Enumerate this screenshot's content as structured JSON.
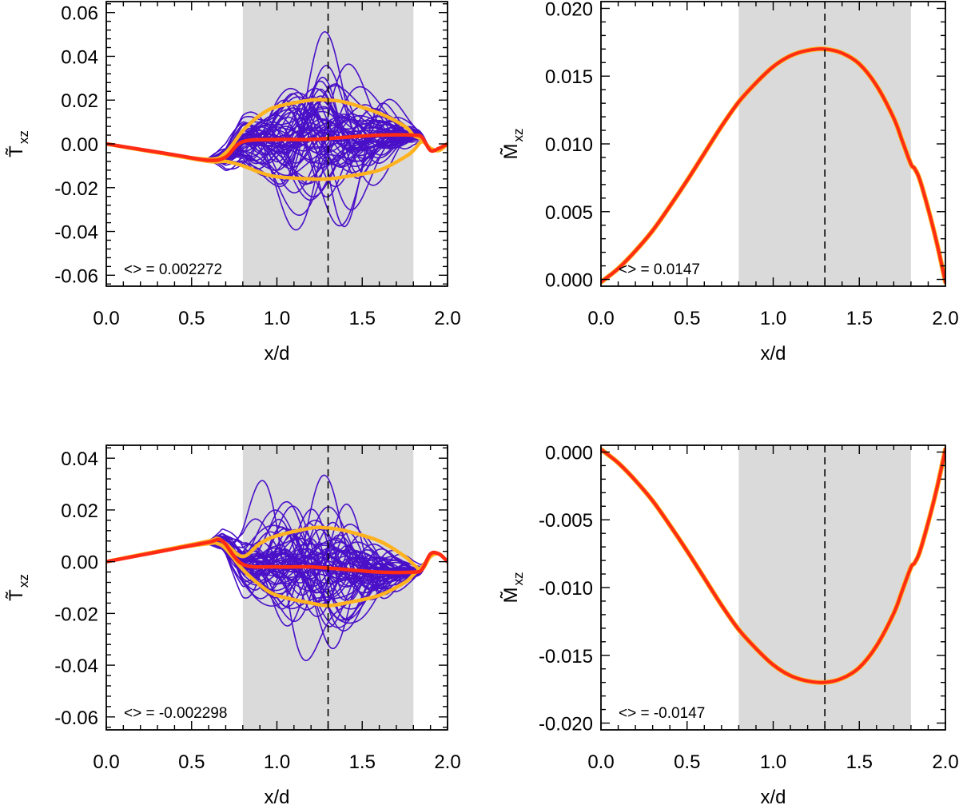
{
  "chart_data": [
    {
      "type": "line",
      "panel": "top-left",
      "xlabel": "x/d",
      "ylabel": "T̃",
      "ylabel_sub": "xz",
      "xlim": [
        0.0,
        2.0
      ],
      "ylim": [
        -0.065,
        0.065
      ],
      "xticks": [
        "0.0",
        "0.5",
        "1.0",
        "1.5",
        "2.0"
      ],
      "xtick_values": [
        0.0,
        0.5,
        1.0,
        1.5,
        2.0
      ],
      "yticks": [
        "0.06",
        "0.04",
        "0.02",
        "0.00",
        "-0.02",
        "-0.04",
        "-0.06"
      ],
      "ytick_values": [
        0.06,
        0.04,
        0.02,
        0.0,
        -0.02,
        -0.04,
        -0.06
      ],
      "shaded_region": [
        0.8,
        1.8
      ],
      "vline": 1.3,
      "annotation": "<> = 0.002272",
      "ensemble": {
        "count": 60,
        "color": "#4a10c8",
        "window": [
          0.8,
          1.8
        ],
        "amplitude": 0.022
      },
      "series": [
        {
          "color": "#ffb21f",
          "role": "upper envelope",
          "x": [
            0.0,
            0.3,
            0.6,
            0.7,
            0.8,
            0.9,
            1.0,
            1.2,
            1.3,
            1.4,
            1.6,
            1.75,
            1.8,
            1.85,
            1.9,
            1.95,
            2.0
          ],
          "y": [
            0.0,
            -0.004,
            -0.007,
            -0.004,
            0.006,
            0.013,
            0.017,
            0.02,
            0.02,
            0.019,
            0.014,
            0.008,
            0.004,
            0.002,
            -0.002,
            -0.003,
            0.0
          ]
        },
        {
          "color": "#ffb21f",
          "role": "lower envelope",
          "x": [
            0.0,
            0.3,
            0.6,
            0.7,
            0.8,
            0.9,
            1.0,
            1.2,
            1.3,
            1.4,
            1.6,
            1.75,
            1.8,
            1.85,
            1.9,
            1.95,
            2.0
          ],
          "y": [
            0.0,
            -0.004,
            -0.008,
            -0.008,
            -0.01,
            -0.013,
            -0.015,
            -0.016,
            -0.016,
            -0.015,
            -0.012,
            -0.006,
            -0.003,
            0.001,
            -0.002,
            -0.003,
            0.0
          ]
        },
        {
          "color": "#ff2b14",
          "role": "mean",
          "x": [
            0.0,
            0.2,
            0.4,
            0.6,
            0.7,
            0.8,
            1.0,
            1.2,
            1.4,
            1.6,
            1.8,
            1.85,
            1.9,
            1.95,
            2.0
          ],
          "y": [
            0.0,
            -0.0025,
            -0.005,
            -0.0075,
            -0.006,
            0.001,
            0.002,
            0.002,
            0.003,
            0.004,
            0.004,
            0.003,
            -0.003,
            -0.002,
            0.0
          ]
        }
      ]
    },
    {
      "type": "line",
      "panel": "top-right",
      "xlabel": "x/d",
      "ylabel": "M̃",
      "ylabel_sub": "xz",
      "xlim": [
        0.0,
        2.0
      ],
      "ylim": [
        -0.0005,
        0.0205
      ],
      "xticks": [
        "0.0",
        "0.5",
        "1.0",
        "1.5",
        "2.0"
      ],
      "xtick_values": [
        0.0,
        0.5,
        1.0,
        1.5,
        2.0
      ],
      "yticks": [
        "0.020",
        "0.015",
        "0.010",
        "0.005",
        "0.000"
      ],
      "ytick_values": [
        0.02,
        0.015,
        0.01,
        0.005,
        0.0
      ],
      "shaded_region": [
        0.8,
        1.8
      ],
      "vline": 1.3,
      "annotation": "<> = 0.0147",
      "series": [
        {
          "color": "#ff2b14",
          "role": "profile",
          "x": [
            0.0,
            0.1,
            0.2,
            0.3,
            0.4,
            0.5,
            0.6,
            0.7,
            0.8,
            0.9,
            1.0,
            1.1,
            1.2,
            1.3,
            1.4,
            1.5,
            1.6,
            1.7,
            1.75,
            1.8,
            1.82,
            1.85,
            1.9,
            1.95,
            2.0
          ],
          "y": [
            -0.0002,
            0.0008,
            0.0021,
            0.0036,
            0.0054,
            0.0073,
            0.0093,
            0.0113,
            0.0131,
            0.0145,
            0.0157,
            0.0165,
            0.0169,
            0.017,
            0.0167,
            0.0159,
            0.0143,
            0.0119,
            0.0102,
            0.0085,
            0.0082,
            0.0074,
            0.0052,
            0.0027,
            -0.0002
          ]
        }
      ]
    },
    {
      "type": "line",
      "panel": "bottom-left",
      "xlabel": "x/d",
      "ylabel": "T̃",
      "ylabel_sub": "xz",
      "xlim": [
        0.0,
        2.0
      ],
      "ylim": [
        -0.065,
        0.045
      ],
      "xticks": [
        "0.0",
        "0.5",
        "1.0",
        "1.5",
        "2.0"
      ],
      "xtick_values": [
        0.0,
        0.5,
        1.0,
        1.5,
        2.0
      ],
      "yticks": [
        "0.04",
        "0.02",
        "0.00",
        "-0.02",
        "-0.04",
        "-0.06"
      ],
      "ytick_values": [
        0.04,
        0.02,
        0.0,
        -0.02,
        -0.04,
        -0.06
      ],
      "shaded_region": [
        0.8,
        1.8
      ],
      "vline": 1.3,
      "annotation": "<> = -0.002298",
      "ensemble": {
        "count": 60,
        "color": "#4a10c8",
        "window": [
          0.8,
          1.8
        ],
        "amplitude": 0.02
      },
      "series": [
        {
          "color": "#ffb21f",
          "role": "upper envelope",
          "x": [
            0.0,
            0.3,
            0.6,
            0.65,
            0.7,
            0.8,
            0.9,
            1.0,
            1.2,
            1.3,
            1.4,
            1.6,
            1.75,
            1.8,
            1.85,
            1.9,
            1.95,
            2.0
          ],
          "y": [
            0.0,
            0.004,
            0.008,
            0.009,
            0.007,
            0.002,
            0.007,
            0.01,
            0.013,
            0.013,
            0.012,
            0.008,
            0.002,
            -0.001,
            -0.003,
            0.002,
            0.003,
            0.0
          ]
        },
        {
          "color": "#ffb21f",
          "role": "lower envelope",
          "x": [
            0.0,
            0.3,
            0.6,
            0.65,
            0.7,
            0.8,
            0.9,
            1.0,
            1.2,
            1.3,
            1.4,
            1.6,
            1.75,
            1.8,
            1.85,
            1.9,
            1.95,
            2.0
          ],
          "y": [
            0.0,
            0.004,
            0.007,
            0.007,
            0.005,
            -0.003,
            -0.009,
            -0.013,
            -0.016,
            -0.017,
            -0.016,
            -0.013,
            -0.008,
            -0.005,
            -0.002,
            0.002,
            0.003,
            0.0
          ]
        },
        {
          "color": "#ff2b14",
          "role": "mean",
          "x": [
            0.0,
            0.2,
            0.4,
            0.6,
            0.68,
            0.8,
            1.0,
            1.2,
            1.4,
            1.6,
            1.8,
            1.85,
            1.9,
            1.95,
            2.0
          ],
          "y": [
            0.0,
            0.0025,
            0.005,
            0.0075,
            0.008,
            -0.001,
            -0.002,
            -0.002,
            -0.003,
            -0.004,
            -0.004,
            -0.003,
            0.003,
            0.003,
            0.0
          ]
        }
      ]
    },
    {
      "type": "line",
      "panel": "bottom-right",
      "xlabel": "x/d",
      "ylabel": "M̃",
      "ylabel_sub": "xz",
      "xlim": [
        0.0,
        2.0
      ],
      "ylim": [
        -0.0205,
        0.0005
      ],
      "xticks": [
        "0.0",
        "0.5",
        "1.0",
        "1.5",
        "2.0"
      ],
      "xtick_values": [
        0.0,
        0.5,
        1.0,
        1.5,
        2.0
      ],
      "yticks": [
        "0.000",
        "-0.005",
        "-0.010",
        "-0.015",
        "-0.020"
      ],
      "ytick_values": [
        0.0,
        -0.005,
        -0.01,
        -0.015,
        -0.02
      ],
      "shaded_region": [
        0.8,
        1.8
      ],
      "vline": 1.3,
      "annotation": "<> = -0.0147",
      "series": [
        {
          "color": "#ff2b14",
          "role": "profile",
          "x": [
            0.0,
            0.1,
            0.2,
            0.3,
            0.4,
            0.5,
            0.6,
            0.7,
            0.8,
            0.9,
            1.0,
            1.1,
            1.2,
            1.3,
            1.4,
            1.5,
            1.6,
            1.7,
            1.75,
            1.8,
            1.82,
            1.85,
            1.9,
            1.95,
            2.0
          ],
          "y": [
            0.0002,
            -0.0008,
            -0.0021,
            -0.0036,
            -0.0054,
            -0.0073,
            -0.0093,
            -0.0113,
            -0.0131,
            -0.0145,
            -0.0157,
            -0.0165,
            -0.0169,
            -0.017,
            -0.0167,
            -0.0159,
            -0.0143,
            -0.0119,
            -0.0102,
            -0.0085,
            -0.0082,
            -0.0074,
            -0.0052,
            -0.0027,
            0.0002
          ]
        }
      ]
    }
  ]
}
